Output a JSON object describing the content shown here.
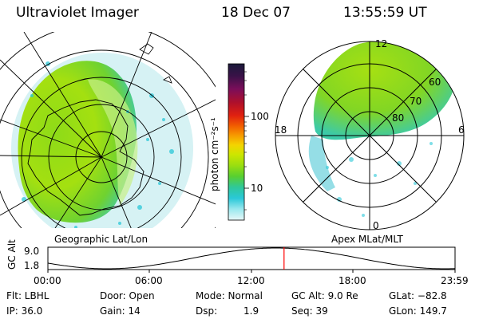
{
  "header": {
    "instrument": "Ultraviolet Imager",
    "date": "18 Dec 07",
    "time": "13:55:59 UT"
  },
  "left_panel": {
    "caption": "Geographic Lat/Lon"
  },
  "right_panel": {
    "caption": "Apex MLat/MLT",
    "mlt_labels": {
      "top": "12",
      "left": "18",
      "right": "6",
      "bottom": "0"
    },
    "lat_labels": [
      "60",
      "70",
      "80"
    ]
  },
  "colorbar": {
    "unit_label": "photon cm⁻²s⁻¹",
    "ticks": [
      "100",
      "10"
    ],
    "scale": "log",
    "colors_top_to_bottom": [
      "#1a1a3a",
      "#3b1248",
      "#7a0e5a",
      "#b0102a",
      "#e02010",
      "#f26000",
      "#f79c00",
      "#f4d400",
      "#cde600",
      "#9ade10",
      "#58cf30",
      "#2fc89a",
      "#2ac8d8",
      "#9ae8ee",
      "#e8f8f8"
    ]
  },
  "timeline": {
    "ylabel": "GC Alt",
    "ymax": "9.0",
    "ymin": "1.8",
    "x_ticks": [
      "00:00",
      "06:00",
      "12:00",
      "18:00",
      "23:59"
    ],
    "current_time_fraction": 0.58,
    "marker_color": "#ff0000"
  },
  "info": {
    "flt": "Flt: LBHL",
    "door": "Door: Open",
    "mode": "Mode: Normal",
    "gc_alt": "GC Alt: 9.0 Re",
    "glat": "GLat: −82.8",
    "ip": "IP: 36.0",
    "gain": "Gain: 14",
    "dsp_label": "Dsp:",
    "dsp_value": "1.9",
    "seq": "Seq: 39",
    "glon": "GLon: 149.7"
  }
}
